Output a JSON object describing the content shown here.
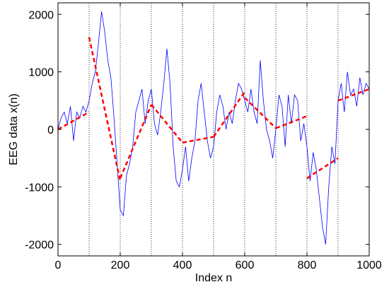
{
  "chart_data": {
    "type": "line",
    "x_label": "Index n",
    "y_label": "EEG data x(n)",
    "xlim": [
      0,
      1000
    ],
    "xticks": [
      0,
      200,
      400,
      600,
      800,
      1000
    ],
    "ylim": [
      -2200,
      2200
    ],
    "yticks": [
      -2000,
      -1000,
      0,
      1000,
      2000
    ],
    "vlines": [
      100,
      200,
      300,
      400,
      500,
      600,
      700,
      800,
      900
    ],
    "series": [
      {
        "color": "#0000ff",
        "style": "solid",
        "x": [
          0,
          10,
          20,
          30,
          40,
          50,
          60,
          70,
          80,
          90,
          100,
          110,
          120,
          130,
          140,
          150,
          160,
          170,
          180,
          190,
          200,
          210,
          220,
          230,
          240,
          250,
          260,
          270,
          280,
          290,
          300,
          310,
          320,
          330,
          340,
          350,
          360,
          370,
          380,
          390,
          400,
          410,
          420,
          430,
          440,
          450,
          460,
          470,
          480,
          490,
          500,
          510,
          520,
          530,
          540,
          550,
          560,
          570,
          580,
          590,
          600,
          610,
          620,
          630,
          640,
          650,
          660,
          670,
          680,
          690,
          700,
          710,
          720,
          730,
          740,
          750,
          760,
          770,
          780,
          790,
          800,
          810,
          820,
          830,
          840,
          850,
          860,
          870,
          880,
          890,
          900,
          910,
          920,
          930,
          940,
          950,
          960,
          970,
          980,
          990,
          1000
        ],
        "values": [
          0,
          200,
          300,
          100,
          400,
          -200,
          300,
          200,
          400,
          300,
          500,
          800,
          1000,
          1500,
          2050,
          1700,
          1200,
          900,
          200,
          -600,
          -1400,
          -1500,
          -800,
          -600,
          -300,
          300,
          500,
          700,
          100,
          500,
          700,
          100,
          -100,
          300,
          800,
          1400,
          800,
          -300,
          -900,
          -1000,
          -700,
          -300,
          -900,
          -500,
          -200,
          500,
          800,
          300,
          -200,
          -500,
          -300,
          300,
          600,
          400,
          0,
          300,
          100,
          500,
          800,
          700,
          500,
          300,
          700,
          300,
          100,
          1200,
          500,
          0,
          -200,
          -500,
          0,
          600,
          400,
          -300,
          600,
          100,
          600,
          500,
          -200,
          100,
          -300,
          -900,
          -400,
          -700,
          -1200,
          -1700,
          -2000,
          -1000,
          -300,
          -600,
          500,
          800,
          300,
          1000,
          600,
          700,
          400,
          900,
          600,
          800,
          700
        ]
      },
      {
        "color": "#ff0000",
        "style": "dashed",
        "x": [
          0,
          100,
          100,
          100,
          200,
          200,
          200,
          300,
          300,
          300,
          400,
          400,
          400,
          500,
          500,
          500,
          600,
          600,
          600,
          700,
          700,
          700,
          800,
          800,
          800,
          900,
          900,
          900,
          1000
        ],
        "values": [
          0,
          300,
          null,
          1600,
          -900,
          null,
          -850,
          430,
          null,
          430,
          -230,
          null,
          -230,
          -130,
          null,
          -130,
          650,
          null,
          550,
          20,
          null,
          20,
          230,
          null,
          -850,
          -500,
          null,
          500,
          700
        ]
      }
    ]
  }
}
